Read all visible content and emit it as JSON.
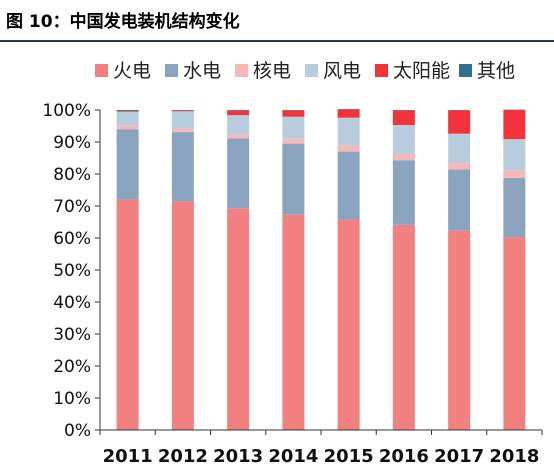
{
  "header": {
    "title": "图 10：中国发电装机结构变化"
  },
  "chart_data": {
    "type": "bar",
    "stacked": true,
    "categories": [
      "2011",
      "2012",
      "2013",
      "2014",
      "2015",
      "2016",
      "2017",
      "2018"
    ],
    "series": [
      {
        "name": "火电",
        "color": "#f28080",
        "values": [
          72,
          71.5,
          69.3,
          67.3,
          65.8,
          64.1,
          62.3,
          60.3
        ]
      },
      {
        "name": "水电",
        "color": "#8aa4c0",
        "values": [
          22,
          21.6,
          21.8,
          22.2,
          21.2,
          20.2,
          19.1,
          18.5
        ]
      },
      {
        "name": "核电",
        "color": "#f7b6b8",
        "values": [
          1.2,
          1.1,
          1.2,
          1.5,
          2.0,
          2.0,
          2.0,
          2.4
        ]
      },
      {
        "name": "风电",
        "color": "#b7ccdc",
        "values": [
          4.3,
          5.4,
          6.1,
          6.9,
          8.6,
          9.0,
          9.2,
          9.7
        ]
      },
      {
        "name": "太阳能",
        "color": "#f2333c",
        "values": [
          0.2,
          0.3,
          1.5,
          2.0,
          2.6,
          4.6,
          7.3,
          9.1
        ]
      },
      {
        "name": "其他",
        "color": "#2f6f8f",
        "values": [
          0.3,
          0.1,
          0.1,
          0.1,
          0.1,
          0.1,
          0.1,
          0.1
        ]
      }
    ],
    "ylim": [
      0,
      100
    ],
    "yticks": [
      "0%",
      "10%",
      "20%",
      "30%",
      "40%",
      "50%",
      "60%",
      "70%",
      "80%",
      "90%",
      "100%"
    ],
    "legend": "top",
    "grid": false
  }
}
